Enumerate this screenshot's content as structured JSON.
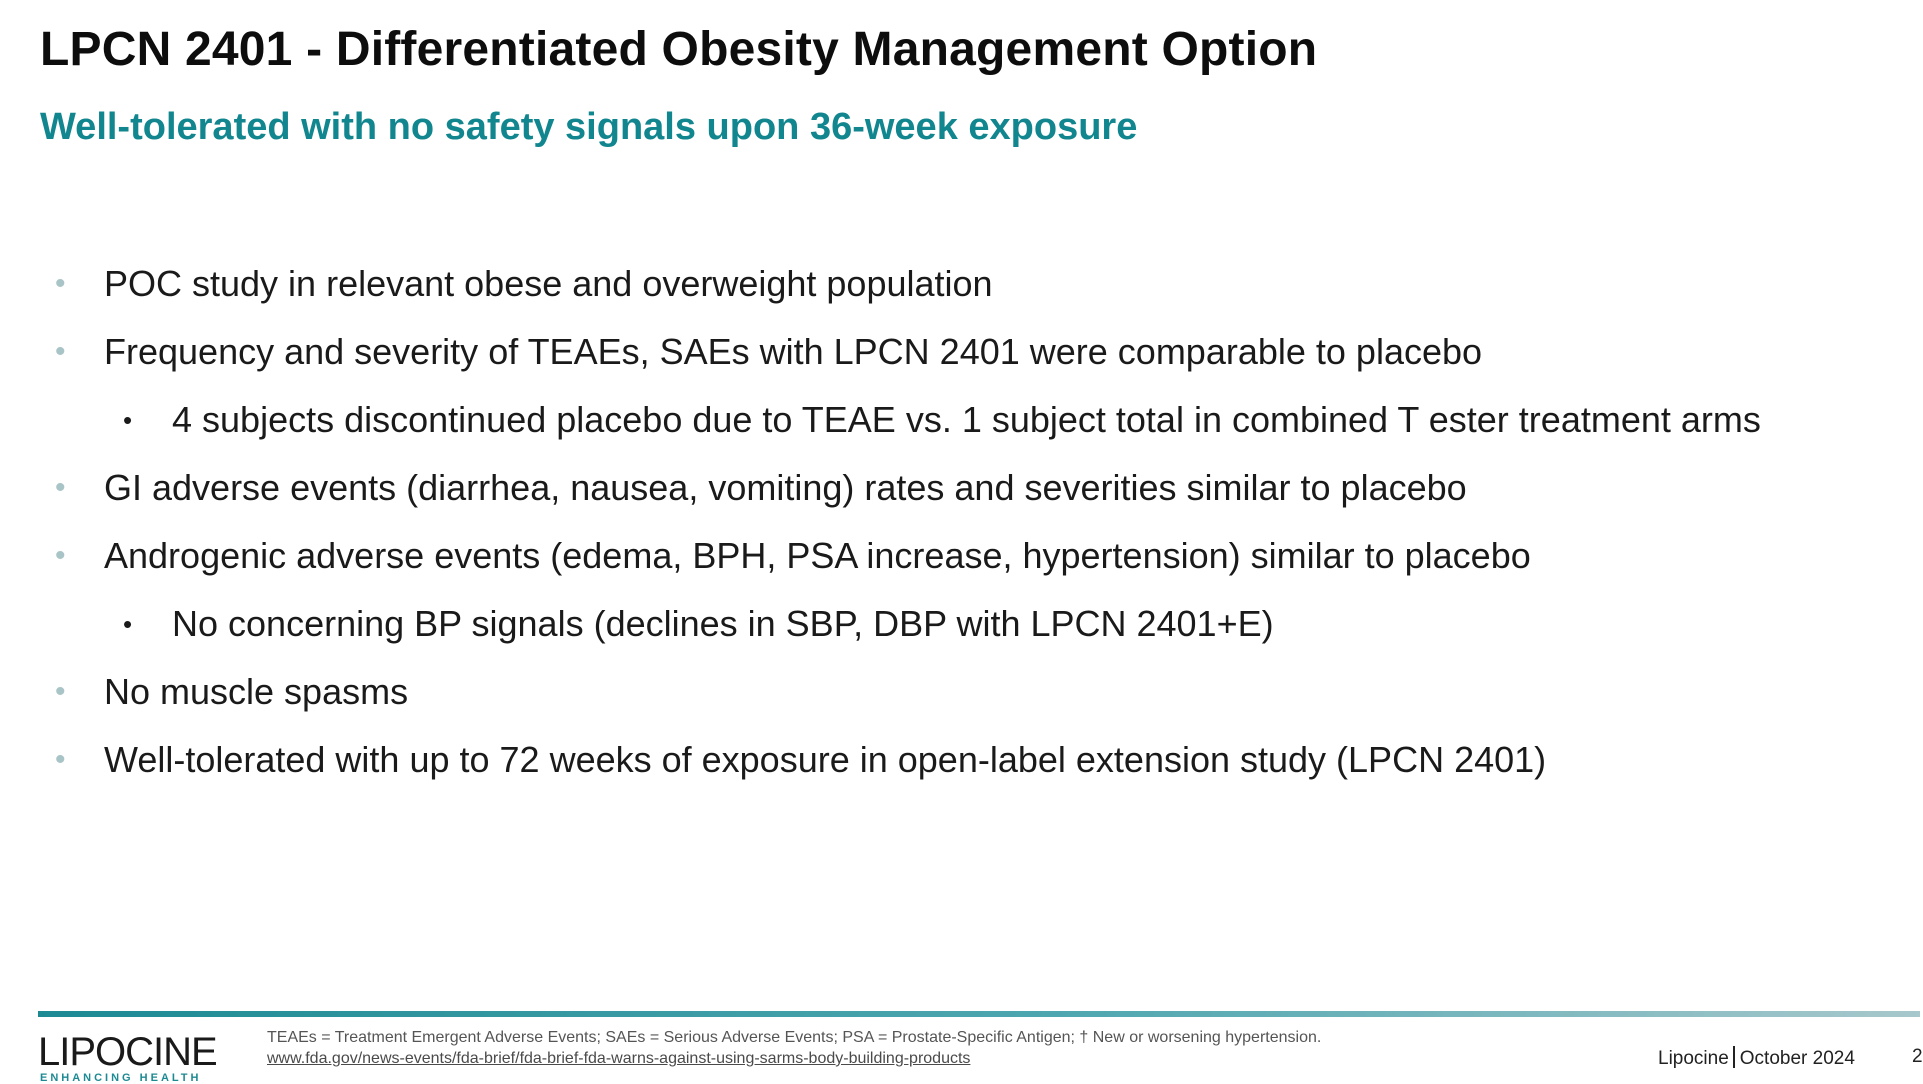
{
  "slide": {
    "title": "LPCN 2401 - Differentiated Obesity Management Option",
    "subtitle": "Well-tolerated with no safety signals upon 36-week exposure"
  },
  "bullets": [
    {
      "level": 1,
      "marker": "•",
      "text": "POC study in relevant obese and overweight population"
    },
    {
      "level": 1,
      "marker": "•",
      "text": "Frequency and severity of TEAEs, SAEs with LPCN 2401 were comparable to placebo"
    },
    {
      "level": 2,
      "marker": "•",
      "text": "4 subjects discontinued placebo due to TEAE vs. 1 subject total in combined T ester treatment arms"
    },
    {
      "level": 1,
      "marker": "•",
      "text": "GI adverse events (diarrhea, nausea, vomiting) rates and severities similar to placebo"
    },
    {
      "level": 1,
      "marker": "•",
      "text": "Androgenic adverse events (edema, BPH, PSA increase, hypertension) similar to placebo"
    },
    {
      "level": 2,
      "marker": "•",
      "text": "No concerning BP signals (declines in SBP, DBP with LPCN 2401+E)"
    },
    {
      "level": 1,
      "marker": "•",
      "text": "No muscle spasms"
    },
    {
      "level": 1,
      "marker": "•",
      "text": "Well-tolerated with up to 72 weeks of exposure in open-label extension study (LPCN 2401)"
    }
  ],
  "footer": {
    "logo_text": "LIPOCINE",
    "logo_tagline": "ENHANCING HEALTH",
    "footnote": "TEAEs = Treatment Emergent Adverse Events; SAEs = Serious Adverse Events; PSA = Prostate-Specific Antigen; † New or worsening hypertension.",
    "footnote_link": "www.fda.gov/news-events/fda-brief/fda-brief-fda-warns-against-using-sarms-body-building-products",
    "company": "Lipocine",
    "date": "October 2024",
    "page_number": "2"
  },
  "colors": {
    "accent": "#11868f",
    "bullet_marker": "#a9c4c7",
    "title": "#0d0d0d"
  },
  "icons": {
    "logo": "lipocine-logo"
  }
}
